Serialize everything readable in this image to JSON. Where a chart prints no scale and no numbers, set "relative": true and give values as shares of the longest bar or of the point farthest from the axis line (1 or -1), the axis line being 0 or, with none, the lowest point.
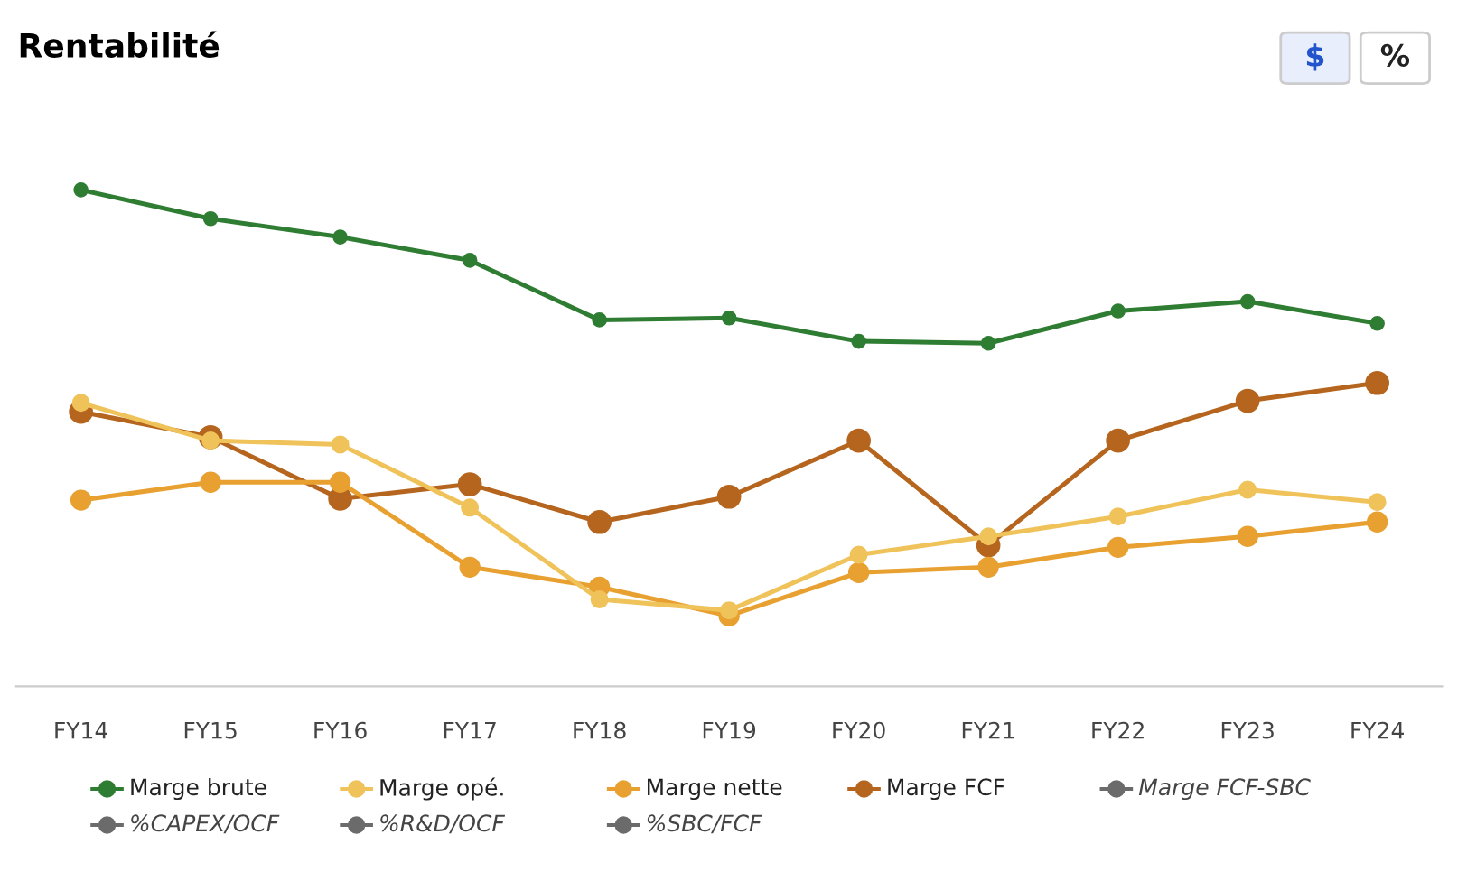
{
  "chart_data": {
    "type": "line",
    "title": "Rentabilité",
    "relative": true,
    "grid": false,
    "marker": "circle",
    "line_style": "solid",
    "legend": "bottom",
    "categories": [
      "FY14",
      "FY15",
      "FY16",
      "FY17",
      "FY18",
      "FY19",
      "FY20",
      "FY21",
      "FY22",
      "FY23",
      "FY24"
    ],
    "series": [
      {
        "name": "Marge brute",
        "color": "#2e7d32",
        "values": [
          1.0,
          0.942,
          0.905,
          0.858,
          0.738,
          0.742,
          0.695,
          0.691,
          0.756,
          0.775,
          0.731
        ]
      },
      {
        "name": "Marge opé.",
        "color": "#f0c35a",
        "values": [
          0.571,
          0.495,
          0.487,
          0.36,
          0.175,
          0.153,
          0.265,
          0.302,
          0.342,
          0.396,
          0.371
        ]
      },
      {
        "name": "Marge nette",
        "color": "#e8a030",
        "values": [
          0.375,
          0.411,
          0.411,
          0.24,
          0.2,
          0.142,
          0.229,
          0.24,
          0.28,
          0.302,
          0.331
        ]
      },
      {
        "name": "Marge FCF",
        "color": "#b5651d",
        "values": [
          0.553,
          0.502,
          0.378,
          0.407,
          0.331,
          0.382,
          0.495,
          0.284,
          0.495,
          0.575,
          0.611
        ]
      },
      {
        "name": "Marge FCF-SBC",
        "color": "#6b6b6b",
        "values": [
          null,
          null,
          null,
          null,
          null,
          null,
          null,
          null,
          null,
          null,
          null
        ]
      },
      {
        "name": "%CAPEX/OCF",
        "color": "#6b6b6b",
        "values": [
          null,
          null,
          null,
          null,
          null,
          null,
          null,
          null,
          null,
          null,
          null
        ]
      },
      {
        "name": "%R&D/OCF",
        "color": "#6b6b6b",
        "values": [
          null,
          null,
          null,
          null,
          null,
          null,
          null,
          null,
          null,
          null,
          null
        ]
      },
      {
        "name": "%SBC/FCF",
        "color": "#6b6b6b",
        "values": [
          null,
          null,
          null,
          null,
          null,
          null,
          null,
          null,
          null,
          null,
          null
        ]
      }
    ],
    "annotations": [
      "$",
      "%"
    ]
  }
}
